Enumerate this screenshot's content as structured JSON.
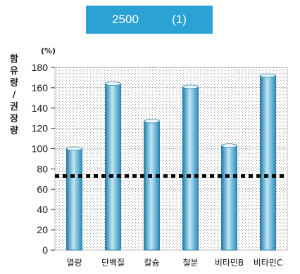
{
  "title": "2500          (1)",
  "chart_data": {
    "type": "bar",
    "title": "2500          (1)",
    "ylabel": "함유량 / 권장량",
    "yunit": "(%)",
    "categories": [
      "열량",
      "단백질",
      "칼슘",
      "철분",
      "비타민B",
      "비타민C"
    ],
    "values": [
      100,
      164,
      127,
      161,
      103,
      172
    ],
    "reference_line": 73,
    "ylim": [
      0,
      180
    ],
    "yticks": [
      0,
      20,
      40,
      60,
      80,
      100,
      120,
      140,
      160,
      180
    ],
    "grid": true,
    "bar_color": "#3d9fc6",
    "legend": "none"
  }
}
